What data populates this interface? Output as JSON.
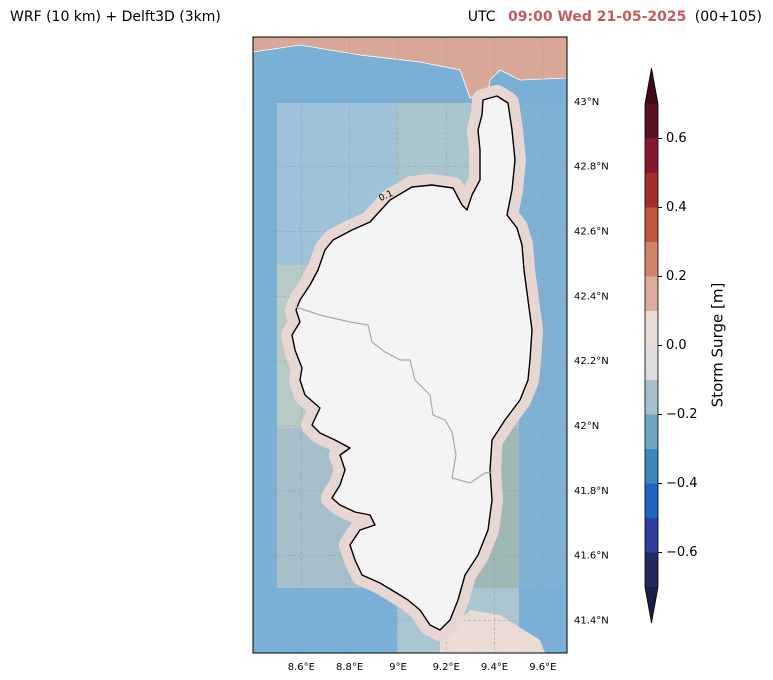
{
  "header": {
    "left_title": "WRF (10 km) + Delft3D (3km)",
    "utc": "UTC",
    "time": "09:00 Wed 21-05-2025",
    "lead": "(00+105)"
  },
  "map": {
    "xlim": [
      8.4,
      9.7
    ],
    "ylim": [
      41.3,
      43.2
    ],
    "xticks": [
      {
        "value": 8.6,
        "label": "8.6°E"
      },
      {
        "value": 8.8,
        "label": "8.8°E"
      },
      {
        "value": 9.0,
        "label": "9°E"
      },
      {
        "value": 9.2,
        "label": "9.2°E"
      },
      {
        "value": 9.4,
        "label": "9.4°E"
      },
      {
        "value": 9.6,
        "label": "9.6°E"
      }
    ],
    "yticks": [
      {
        "value": 41.4,
        "label": "41.4°N"
      },
      {
        "value": 41.6,
        "label": "41.6°N"
      },
      {
        "value": 41.8,
        "label": "41.8°N"
      },
      {
        "value": 42.0,
        "label": "42°N"
      },
      {
        "value": 42.2,
        "label": "42.2°N"
      },
      {
        "value": 42.4,
        "label": "42.4°N"
      },
      {
        "value": 42.6,
        "label": "42.6°N"
      },
      {
        "value": 42.8,
        "label": "42.8°N"
      },
      {
        "value": 43.0,
        "label": "43°N"
      }
    ],
    "grid": true,
    "contour_label": "0.1"
  },
  "colorbar": {
    "label": "Storm Surge [m]",
    "levels": [
      -0.7,
      -0.6,
      -0.5,
      -0.4,
      -0.3,
      -0.2,
      -0.1,
      0,
      0.1,
      0.2,
      0.3,
      0.4,
      0.5,
      0.6,
      0.7
    ],
    "colors": [
      "#23295a",
      "#2f3e9a",
      "#1f66c0",
      "#3a88bb",
      "#6ea6be",
      "#a9bfcb",
      "#dcdcdc",
      "#eadbd7",
      "#dbab9c",
      "#cf8468",
      "#c05a3e",
      "#a62e2a",
      "#841a30",
      "#5a1222"
    ],
    "under_color": "#1b1f45",
    "over_color": "#3d0c16",
    "ticks": [
      {
        "value": -0.6,
        "label": "−0.6"
      },
      {
        "value": -0.4,
        "label": "−0.4"
      },
      {
        "value": -0.2,
        "label": "−0.2"
      },
      {
        "value": 0,
        "label": "0.0"
      },
      0.2,
      0.4,
      0.6
    ]
  }
}
